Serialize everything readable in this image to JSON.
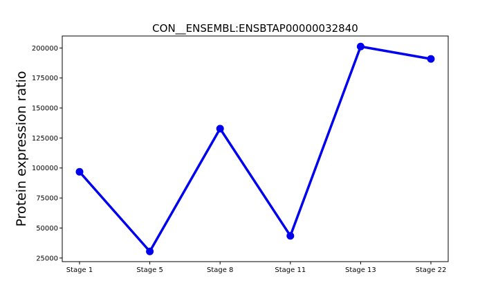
{
  "chart_data": {
    "type": "line",
    "title": "CON__ENSEMBL:ENSBTAP00000032840",
    "xlabel": "",
    "ylabel": "Protein expression ratio",
    "categories": [
      "Stage 1",
      "Stage 5",
      "Stage 8",
      "Stage 11",
      "Stage 13",
      "Stage 22"
    ],
    "series": [
      {
        "values": [
          96800,
          30500,
          132800,
          43500,
          201200,
          190900
        ]
      }
    ],
    "ylim": [
      22000,
      210000
    ],
    "yticks": [
      25000,
      50000,
      75000,
      100000,
      125000,
      150000,
      175000,
      200000
    ],
    "ytick_labels": [
      "25000",
      "50000",
      "75000",
      "100000",
      "125000",
      "150000",
      "175000",
      "200000"
    ],
    "grid": false,
    "legend": "none",
    "colors": {
      "series": "#0000ee",
      "axes": "#000000",
      "background": "#ffffff"
    }
  }
}
